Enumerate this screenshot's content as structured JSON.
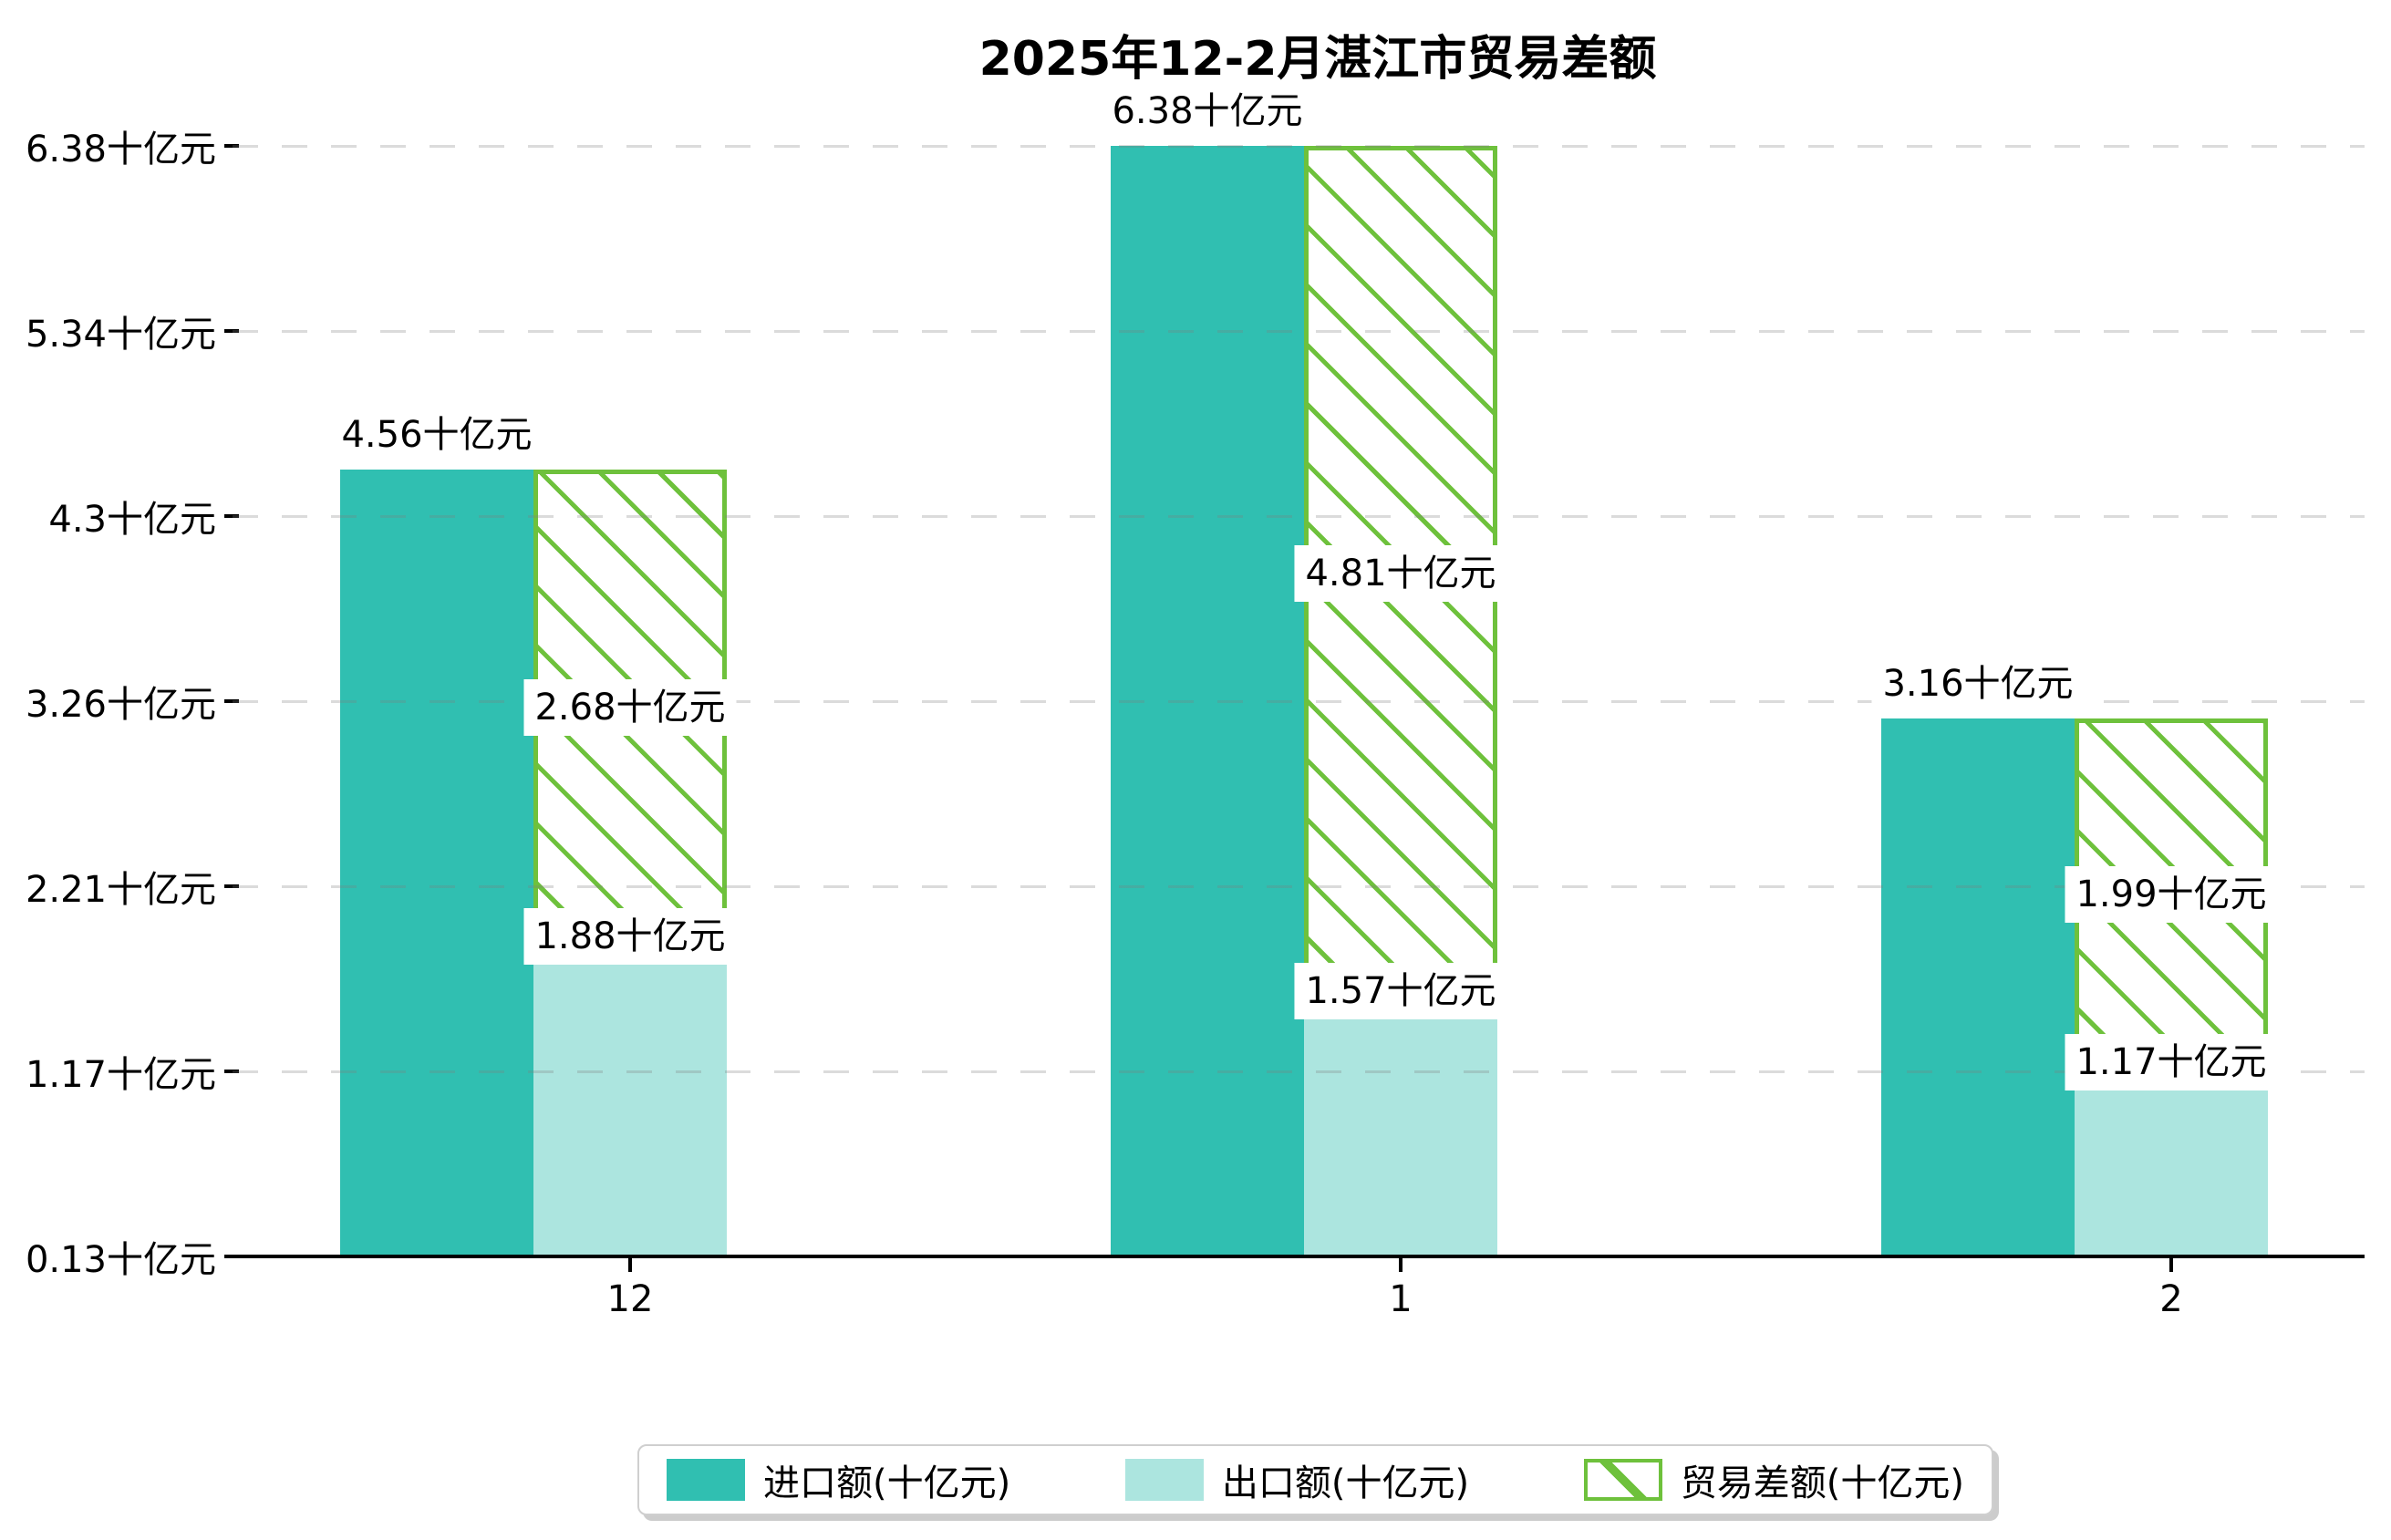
{
  "title": "2025年12-2月湛江市贸易差额",
  "legend": {
    "items": [
      {
        "label": "进口额(十亿元)",
        "color": "#30BFB1",
        "style": "solid"
      },
      {
        "label": "出口额(十亿元)",
        "color": "#ACE5DF",
        "style": "solid"
      },
      {
        "label": "贸易差额(十亿元)",
        "color": "#6EC13C",
        "style": "hatched"
      }
    ]
  },
  "colors": {
    "import": "#30BFB1",
    "export": "#ACE5DF",
    "balance": "#6EC13C",
    "axis": "#000000",
    "grid": "#c9c9c9",
    "background": "#ffffff"
  },
  "y_axis": {
    "unit": "十亿元",
    "ticks": [
      {
        "label": "0.13十亿元",
        "value": 0.13
      },
      {
        "label": "1.17十亿元",
        "value": 1.1717
      },
      {
        "label": "2.21十亿元",
        "value": 2.2133
      },
      {
        "label": "3.26十亿元",
        "value": 3.255
      },
      {
        "label": "4.3十亿元",
        "value": 4.2967
      },
      {
        "label": "5.34十亿元",
        "value": 5.3383
      },
      {
        "label": "6.38十亿元",
        "value": 6.38
      }
    ]
  },
  "chart_data": {
    "type": "bar",
    "title": "2025年12-2月湛江市贸易差额",
    "categories": [
      "12",
      "1",
      "2"
    ],
    "series": [
      {
        "name": "进口额(十亿元)",
        "style": "solid",
        "color": "#30BFB1",
        "values": [
          4.56,
          6.38,
          3.16
        ]
      },
      {
        "name": "出口额(十亿元)",
        "style": "solid",
        "color": "#ACE5DF",
        "values": [
          1.88,
          1.57,
          1.17
        ]
      },
      {
        "name": "贸易差额(十亿元)",
        "style": "hatched-outline",
        "color": "#6EC13C",
        "values": [
          2.68,
          4.81,
          1.99
        ],
        "render": "stacked on top of export bar, spanning from export value up to import value"
      }
    ],
    "groups": [
      {
        "category": "12",
        "import": {
          "value": 4.56,
          "label": "4.56十亿元"
        },
        "export": {
          "value": 1.88,
          "label": "1.88十亿元"
        },
        "balance": {
          "value": 2.68,
          "label": "2.68十亿元"
        }
      },
      {
        "category": "1",
        "import": {
          "value": 6.38,
          "label": "6.38十亿元"
        },
        "export": {
          "value": 1.57,
          "label": "1.57十亿元"
        },
        "balance": {
          "value": 4.81,
          "label": "4.81十亿元"
        }
      },
      {
        "category": "2",
        "import": {
          "value": 3.16,
          "label": "3.16十亿元"
        },
        "export": {
          "value": 1.17,
          "label": "1.17十亿元"
        },
        "balance": {
          "value": 1.99,
          "label": "1.99十亿元"
        }
      }
    ],
    "xlabel": "",
    "ylabel": "",
    "ylim": [
      0.13,
      6.38
    ],
    "grid": "horizontal dashed, drawn over bars",
    "legend_position": "bottom center, boxed with shadow"
  }
}
